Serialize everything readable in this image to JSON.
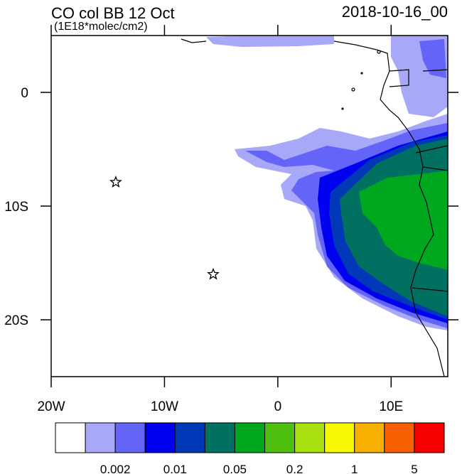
{
  "title": "CO col BB 12 Oct",
  "subtitle": "(1E18*molec/cm2)",
  "date": "2018-10-16_00",
  "map": {
    "xlim": [
      -20,
      15
    ],
    "ylim": [
      -25,
      5
    ],
    "xticks": [
      {
        "value": -20,
        "label": "20W"
      },
      {
        "value": -10,
        "label": "10W"
      },
      0,
      {
        "value": 10,
        "label": "10E"
      }
    ],
    "yticks": [
      0,
      {
        "value": -10,
        "label": "10S"
      },
      {
        "value": -20,
        "label": "20S"
      }
    ],
    "stars": [
      {
        "lon": -14.3,
        "lat": -7.9
      },
      {
        "lon": -5.7,
        "lat": -16
      }
    ]
  },
  "colorbar": {
    "colors": [
      "#ffffff",
      "#a8a8f8",
      "#6464f8",
      "#0000f0",
      "#0038b8",
      "#007060",
      "#00a820",
      "#50c010",
      "#a8e010",
      "#f8f800",
      "#f8b000",
      "#f86000",
      "#f80000"
    ],
    "labels": [
      0.002,
      0.01,
      0.05,
      0.2,
      1,
      5
    ]
  }
}
